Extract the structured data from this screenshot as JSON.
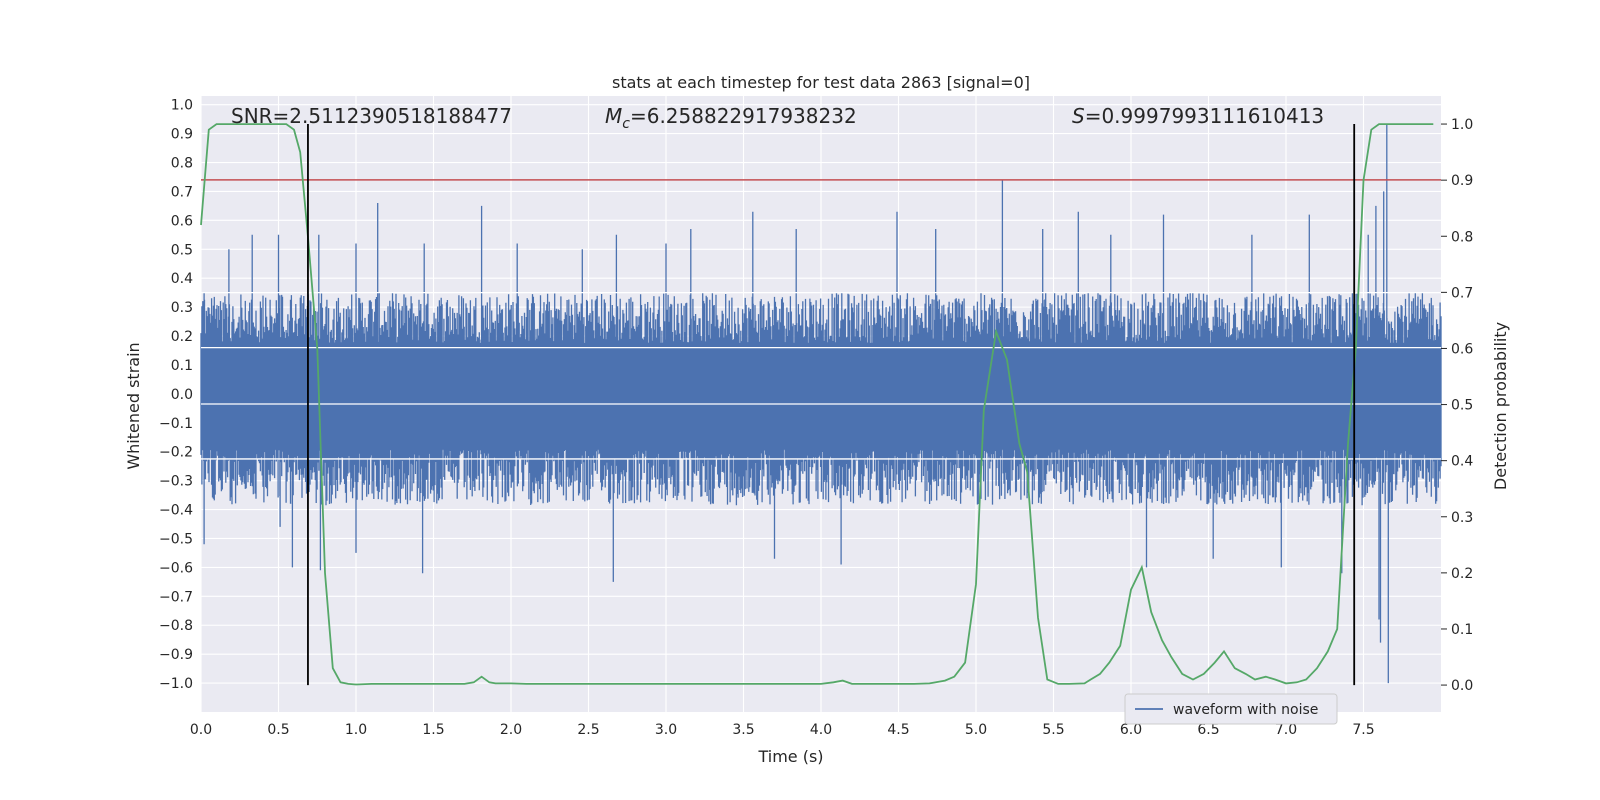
{
  "chart_data": {
    "type": "line",
    "title": "stats at each timestep for test data 2863 [signal=0]",
    "xlabel": "Time (s)",
    "ylabel_left": "Whitened strain",
    "ylabel_right": "Detection probability",
    "xlim": [
      0.0,
      8.0
    ],
    "ylim_left": [
      -1.1,
      1.03
    ],
    "ylim_right": [
      -0.048,
      1.05
    ],
    "x_ticks": [
      "0.0",
      "0.5",
      "1.0",
      "1.5",
      "2.0",
      "2.5",
      "3.0",
      "3.5",
      "4.0",
      "4.5",
      "5.0",
      "5.5",
      "6.0",
      "6.5",
      "7.0",
      "7.5"
    ],
    "y_left_ticks": [
      "1.0",
      "0.9",
      "0.8",
      "0.7",
      "0.6",
      "0.5",
      "0.4",
      "0.3",
      "0.2",
      "0.1",
      "0.0",
      "-0.1",
      "-0.2",
      "-0.3",
      "-0.4",
      "-0.5",
      "-0.6",
      "-0.7",
      "-0.8",
      "-0.9",
      "-1.0"
    ],
    "y_right_ticks": [
      "1.0",
      "0.9",
      "0.8",
      "0.7",
      "0.6",
      "0.5",
      "0.4",
      "0.3",
      "0.2",
      "0.1",
      "0.0"
    ],
    "grid": true,
    "annotations": {
      "snr": "SNR=2.5112390518188477",
      "mc_symbol": "M",
      "mc_sub": "c",
      "mc_value": "=6.258822917938232",
      "s_symbol": "S",
      "s_value": "=0.9997993111610413"
    },
    "threshold_line": {
      "axis": "left",
      "y": 0.74,
      "color": "#c44e52"
    },
    "vertical_lines": [
      0.69,
      7.44
    ],
    "waveform": {
      "name": "waveform with noise",
      "color": "#4c72b0",
      "x_range": [
        0.0,
        8.0
      ],
      "typical_envelope": [
        -0.35,
        0.32
      ],
      "spikes": [
        [
          0.02,
          0.35
        ],
        [
          0.02,
          -0.52
        ],
        [
          0.18,
          0.5
        ],
        [
          0.33,
          0.55
        ],
        [
          0.5,
          0.55
        ],
        [
          0.51,
          -0.46
        ],
        [
          0.59,
          -0.6
        ],
        [
          0.76,
          0.55
        ],
        [
          0.77,
          -0.61
        ],
        [
          1.0,
          0.52
        ],
        [
          1.0,
          -0.55
        ],
        [
          1.14,
          0.66
        ],
        [
          1.43,
          -0.62
        ],
        [
          1.44,
          0.52
        ],
        [
          1.81,
          0.65
        ],
        [
          2.04,
          0.52
        ],
        [
          2.46,
          0.5
        ],
        [
          2.66,
          -0.65
        ],
        [
          2.68,
          0.55
        ],
        [
          3.0,
          0.52
        ],
        [
          3.16,
          0.57
        ],
        [
          3.56,
          0.63
        ],
        [
          3.7,
          -0.57
        ],
        [
          3.84,
          0.57
        ],
        [
          4.13,
          -0.59
        ],
        [
          4.49,
          0.63
        ],
        [
          4.74,
          0.57
        ],
        [
          5.17,
          0.74
        ],
        [
          5.43,
          0.57
        ],
        [
          5.66,
          0.63
        ],
        [
          5.87,
          0.55
        ],
        [
          6.1,
          -0.6
        ],
        [
          6.21,
          0.62
        ],
        [
          6.53,
          -0.57
        ],
        [
          6.78,
          0.55
        ],
        [
          6.97,
          -0.6
        ],
        [
          7.15,
          0.62
        ],
        [
          7.36,
          -0.62
        ],
        [
          7.53,
          0.55
        ],
        [
          7.6,
          -0.78
        ],
        [
          7.65,
          0.93
        ],
        [
          7.66,
          -1.0
        ],
        [
          7.63,
          0.7
        ],
        [
          7.58,
          0.65
        ],
        [
          7.61,
          -0.86
        ]
      ]
    },
    "probability": {
      "name": "Detection probability",
      "axis": "right",
      "color": "#55a868",
      "x": [
        0.0,
        0.05,
        0.1,
        0.15,
        0.2,
        0.25,
        0.3,
        0.35,
        0.4,
        0.45,
        0.5,
        0.55,
        0.6,
        0.64,
        0.69,
        0.75,
        0.8,
        0.85,
        0.9,
        0.95,
        1.0,
        1.1,
        1.2,
        1.3,
        1.4,
        1.5,
        1.6,
        1.7,
        1.76,
        1.81,
        1.86,
        1.9,
        2.0,
        2.1,
        2.2,
        2.4,
        2.6,
        2.8,
        3.0,
        3.2,
        3.4,
        3.6,
        3.8,
        4.0,
        4.08,
        4.14,
        4.2,
        4.4,
        4.6,
        4.7,
        4.8,
        4.86,
        4.93,
        5.0,
        5.05,
        5.13,
        5.2,
        5.28,
        5.33,
        5.4,
        5.46,
        5.53,
        5.6,
        5.7,
        5.74,
        5.8,
        5.86,
        5.93,
        6.0,
        6.07,
        6.13,
        6.2,
        6.26,
        6.33,
        6.4,
        6.47,
        6.54,
        6.6,
        6.67,
        6.74,
        6.8,
        6.87,
        6.93,
        7.0,
        7.07,
        7.13,
        7.2,
        7.27,
        7.33,
        7.4,
        7.45,
        7.5,
        7.55,
        7.6,
        7.65,
        7.7,
        7.8,
        7.95
      ],
      "y": [
        0.82,
        0.99,
        1.0,
        1.0,
        1.0,
        1.0,
        1.0,
        1.0,
        1.0,
        1.0,
        1.0,
        1.0,
        0.99,
        0.95,
        0.8,
        0.6,
        0.2,
        0.03,
        0.005,
        0.002,
        0.001,
        0.002,
        0.002,
        0.002,
        0.002,
        0.002,
        0.002,
        0.002,
        0.005,
        0.015,
        0.005,
        0.003,
        0.003,
        0.002,
        0.002,
        0.002,
        0.002,
        0.002,
        0.002,
        0.002,
        0.002,
        0.002,
        0.002,
        0.002,
        0.005,
        0.008,
        0.002,
        0.002,
        0.002,
        0.003,
        0.008,
        0.015,
        0.04,
        0.18,
        0.49,
        0.63,
        0.58,
        0.43,
        0.38,
        0.12,
        0.01,
        0.002,
        0.002,
        0.003,
        0.01,
        0.02,
        0.04,
        0.07,
        0.17,
        0.21,
        0.13,
        0.08,
        0.05,
        0.02,
        0.01,
        0.02,
        0.04,
        0.06,
        0.03,
        0.02,
        0.01,
        0.015,
        0.01,
        0.003,
        0.005,
        0.01,
        0.03,
        0.06,
        0.1,
        0.43,
        0.6,
        0.9,
        0.99,
        1.0,
        1.0,
        1.0,
        1.0,
        1.0
      ]
    }
  }
}
